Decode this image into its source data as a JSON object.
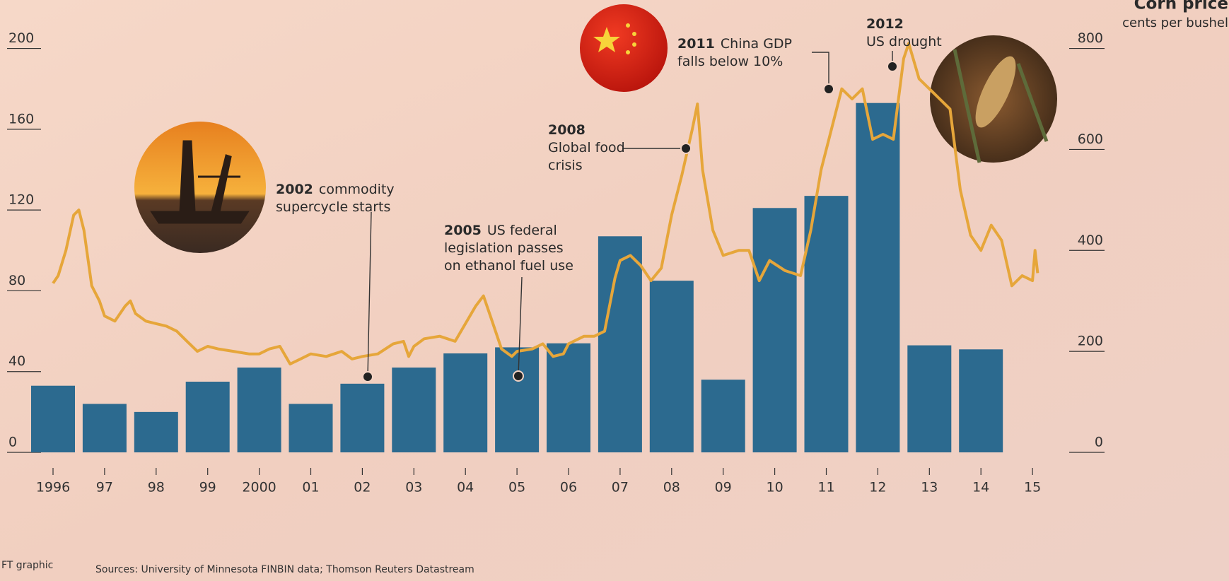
{
  "chart_data": {
    "type": "combo",
    "title": "Corn price",
    "y2_label": "cents per bushel",
    "ylim": [
      0,
      210
    ],
    "yticks": [
      0,
      40,
      80,
      120,
      160,
      200
    ],
    "y2lim": [
      0,
      840
    ],
    "y2ticks": [
      0,
      200,
      400,
      600,
      800
    ],
    "xlim": [
      1995.6,
      2015.4
    ],
    "xticks": [
      1996,
      {
        "value": 1997,
        "label": "97"
      },
      {
        "value": 1998,
        "label": "98"
      },
      {
        "value": 1999,
        "label": "99"
      },
      2000,
      {
        "value": 2001,
        "label": "01"
      },
      {
        "value": 2002,
        "label": "02"
      },
      {
        "value": 2003,
        "label": "03"
      },
      {
        "value": 2004,
        "label": "04"
      },
      {
        "value": 2005,
        "label": "05"
      },
      {
        "value": 2006,
        "label": "06"
      },
      {
        "value": 2007,
        "label": "07"
      },
      {
        "value": 2008,
        "label": "08"
      },
      {
        "value": 2009,
        "label": "09"
      },
      {
        "value": 2010,
        "label": "10"
      },
      {
        "value": 2011,
        "label": "11"
      },
      {
        "value": 2012,
        "label": "12"
      },
      {
        "value": 2013,
        "label": "13"
      },
      {
        "value": 2014,
        "label": "14"
      },
      {
        "value": 2015,
        "label": "15"
      }
    ],
    "series": [
      {
        "type": "bar",
        "color": "#2c6a8f",
        "x": [
          1996,
          1997,
          1998,
          1999,
          2000,
          2001,
          2002,
          2003,
          2004,
          2005,
          2006,
          2007,
          2008,
          2009,
          2010,
          2011,
          2012,
          2013,
          2014
        ],
        "values": [
          33,
          24,
          20,
          35,
          42,
          24,
          34,
          42,
          49,
          52,
          54,
          107,
          85,
          36,
          121,
          127,
          173,
          53,
          51
        ]
      },
      {
        "type": "line",
        "name": "Corn price",
        "axis": "y2",
        "color": "#e6a63a",
        "x": [
          1996.0,
          1996.1,
          1996.25,
          1996.4,
          1996.5,
          1996.6,
          1996.75,
          1996.9,
          1997.0,
          1997.2,
          1997.4,
          1997.5,
          1997.6,
          1997.8,
          1998.0,
          1998.2,
          1998.4,
          1998.6,
          1998.8,
          1999.0,
          1999.2,
          1999.5,
          1999.8,
          2000.0,
          2000.2,
          2000.4,
          2000.6,
          2000.8,
          2001.0,
          2001.3,
          2001.6,
          2001.8,
          2002.0,
          2002.3,
          2002.6,
          2002.8,
          2002.9,
          2003.0,
          2003.2,
          2003.5,
          2003.8,
          2004.0,
          2004.2,
          2004.35,
          2004.5,
          2004.7,
          2004.9,
          2005.0,
          2005.3,
          2005.5,
          2005.7,
          2005.9,
          2006.0,
          2006.3,
          2006.5,
          2006.7,
          2006.9,
          2007.0,
          2007.2,
          2007.4,
          2007.6,
          2007.8,
          2008.0,
          2008.2,
          2008.4,
          2008.5,
          2008.6,
          2008.8,
          2009.0,
          2009.3,
          2009.5,
          2009.7,
          2009.9,
          2010.2,
          2010.5,
          2010.7,
          2010.9,
          2011.1,
          2011.3,
          2011.5,
          2011.7,
          2011.9,
          2012.1,
          2012.3,
          2012.5,
          2012.6,
          2012.8,
          2013.0,
          2013.2,
          2013.4,
          2013.6,
          2013.8,
          2014.0,
          2014.2,
          2014.4,
          2014.6,
          2014.8,
          2015.0,
          2015.05,
          2015.1
        ],
        "values": [
          335,
          350,
          400,
          470,
          480,
          440,
          330,
          300,
          270,
          260,
          290,
          300,
          275,
          260,
          255,
          250,
          240,
          220,
          200,
          210,
          205,
          200,
          195,
          195,
          205,
          210,
          175,
          185,
          195,
          190,
          200,
          185,
          190,
          195,
          215,
          220,
          190,
          210,
          225,
          230,
          220,
          255,
          290,
          310,
          265,
          205,
          190,
          200,
          205,
          215,
          190,
          195,
          215,
          230,
          230,
          240,
          345,
          380,
          390,
          370,
          340,
          365,
          470,
          550,
          640,
          690,
          560,
          440,
          390,
          400,
          400,
          340,
          380,
          360,
          350,
          440,
          560,
          640,
          720,
          700,
          720,
          620,
          630,
          620,
          780,
          810,
          740,
          720,
          700,
          680,
          520,
          430,
          400,
          450,
          420,
          330,
          350,
          340,
          400,
          355
        ]
      }
    ],
    "annotations": [
      {
        "year": "2002",
        "lines": [
          "commodity",
          "supercycle starts"
        ]
      },
      {
        "year": "2005",
        "lines": [
          "US federal",
          "legislation passes",
          "on ethanol fuel use"
        ]
      },
      {
        "year": "2008",
        "lines": [
          "Global food",
          "crisis"
        ]
      },
      {
        "year": "2011",
        "lines": [
          "China GDP",
          "falls below 10%"
        ]
      },
      {
        "year": "2012",
        "lines": [
          "US drought"
        ]
      }
    ],
    "credit": "FT graphic",
    "source": "Sources: University of Minnesota FINBIN data; Thomson Reuters Datastream"
  }
}
